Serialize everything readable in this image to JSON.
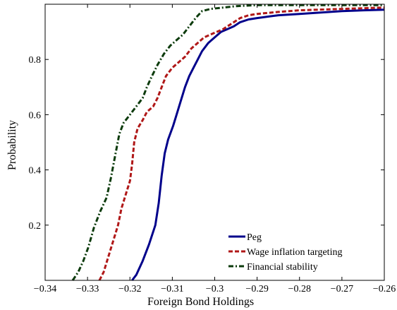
{
  "chart_data": {
    "type": "line",
    "title": "",
    "xlabel": "Foreign Bond Holdings",
    "ylabel": "Probability",
    "xlim": [
      -0.34,
      -0.26
    ],
    "ylim": [
      0,
      1
    ],
    "x_ticks": [
      -0.34,
      -0.33,
      -0.32,
      -0.31,
      -0.3,
      -0.29,
      -0.28,
      -0.27,
      -0.26
    ],
    "x_tick_labels": [
      "−0.34",
      "−0.33",
      "−0.32",
      "−0.31",
      "−0.3",
      "−0.29",
      "−0.28",
      "−0.27",
      "−0.26"
    ],
    "y_ticks": [
      0.2,
      0.4,
      0.6,
      0.8
    ],
    "y_tick_labels": [
      "0.2",
      "0.4",
      "0.6",
      "0.8"
    ],
    "grid": false,
    "legend_position": "bottom-right",
    "series": [
      {
        "name": "Peg",
        "color": "#00008b",
        "style": "solid",
        "points": [
          [
            -0.3195,
            0.0
          ],
          [
            -0.3185,
            0.02
          ],
          [
            -0.317,
            0.07
          ],
          [
            -0.3155,
            0.13
          ],
          [
            -0.314,
            0.2
          ],
          [
            -0.3132,
            0.28
          ],
          [
            -0.3125,
            0.38
          ],
          [
            -0.3118,
            0.46
          ],
          [
            -0.311,
            0.51
          ],
          [
            -0.3098,
            0.56
          ],
          [
            -0.309,
            0.6
          ],
          [
            -0.308,
            0.65
          ],
          [
            -0.307,
            0.7
          ],
          [
            -0.306,
            0.74
          ],
          [
            -0.305,
            0.77
          ],
          [
            -0.304,
            0.8
          ],
          [
            -0.303,
            0.83
          ],
          [
            -0.3015,
            0.86
          ],
          [
            -0.3,
            0.88
          ],
          [
            -0.2985,
            0.9
          ],
          [
            -0.297,
            0.91
          ],
          [
            -0.2955,
            0.92
          ],
          [
            -0.294,
            0.935
          ],
          [
            -0.292,
            0.945
          ],
          [
            -0.29,
            0.95
          ],
          [
            -0.285,
            0.96
          ],
          [
            -0.28,
            0.965
          ],
          [
            -0.275,
            0.97
          ],
          [
            -0.27,
            0.975
          ],
          [
            -0.265,
            0.978
          ],
          [
            -0.26,
            0.98
          ]
        ]
      },
      {
        "name": "Wage inflation targeting",
        "color": "#b01818",
        "style": "dashed",
        "points": [
          [
            -0.3272,
            0.0
          ],
          [
            -0.3262,
            0.03
          ],
          [
            -0.3252,
            0.08
          ],
          [
            -0.324,
            0.14
          ],
          [
            -0.3228,
            0.2
          ],
          [
            -0.322,
            0.26
          ],
          [
            -0.321,
            0.31
          ],
          [
            -0.32,
            0.36
          ],
          [
            -0.3195,
            0.42
          ],
          [
            -0.319,
            0.5
          ],
          [
            -0.3182,
            0.55
          ],
          [
            -0.317,
            0.58
          ],
          [
            -0.316,
            0.61
          ],
          [
            -0.3145,
            0.63
          ],
          [
            -0.3135,
            0.66
          ],
          [
            -0.3125,
            0.7
          ],
          [
            -0.3115,
            0.74
          ],
          [
            -0.31,
            0.77
          ],
          [
            -0.3085,
            0.79
          ],
          [
            -0.307,
            0.81
          ],
          [
            -0.3055,
            0.84
          ],
          [
            -0.304,
            0.86
          ],
          [
            -0.3025,
            0.88
          ],
          [
            -0.301,
            0.89
          ],
          [
            -0.2995,
            0.9
          ],
          [
            -0.298,
            0.91
          ],
          [
            -0.296,
            0.93
          ],
          [
            -0.294,
            0.95
          ],
          [
            -0.292,
            0.96
          ],
          [
            -0.29,
            0.965
          ],
          [
            -0.285,
            0.972
          ],
          [
            -0.28,
            0.978
          ],
          [
            -0.27,
            0.983
          ],
          [
            -0.26,
            0.988
          ]
        ]
      },
      {
        "name": "Financial stability",
        "color": "#0c3b0c",
        "style": "dashdot",
        "points": [
          [
            -0.3335,
            0.0
          ],
          [
            -0.3322,
            0.03
          ],
          [
            -0.331,
            0.07
          ],
          [
            -0.3298,
            0.12
          ],
          [
            -0.3285,
            0.19
          ],
          [
            -0.327,
            0.25
          ],
          [
            -0.3255,
            0.3
          ],
          [
            -0.3245,
            0.37
          ],
          [
            -0.3235,
            0.45
          ],
          [
            -0.3225,
            0.53
          ],
          [
            -0.3215,
            0.57
          ],
          [
            -0.32,
            0.6
          ],
          [
            -0.3185,
            0.63
          ],
          [
            -0.317,
            0.66
          ],
          [
            -0.316,
            0.7
          ],
          [
            -0.3148,
            0.74
          ],
          [
            -0.3135,
            0.78
          ],
          [
            -0.312,
            0.82
          ],
          [
            -0.3105,
            0.85
          ],
          [
            -0.309,
            0.87
          ],
          [
            -0.3075,
            0.89
          ],
          [
            -0.306,
            0.92
          ],
          [
            -0.3045,
            0.95
          ],
          [
            -0.303,
            0.975
          ],
          [
            -0.301,
            0.983
          ],
          [
            -0.298,
            0.988
          ],
          [
            -0.295,
            0.993
          ],
          [
            -0.29,
            0.997
          ],
          [
            -0.28,
            0.997
          ],
          [
            -0.26,
            0.997
          ]
        ]
      }
    ]
  }
}
